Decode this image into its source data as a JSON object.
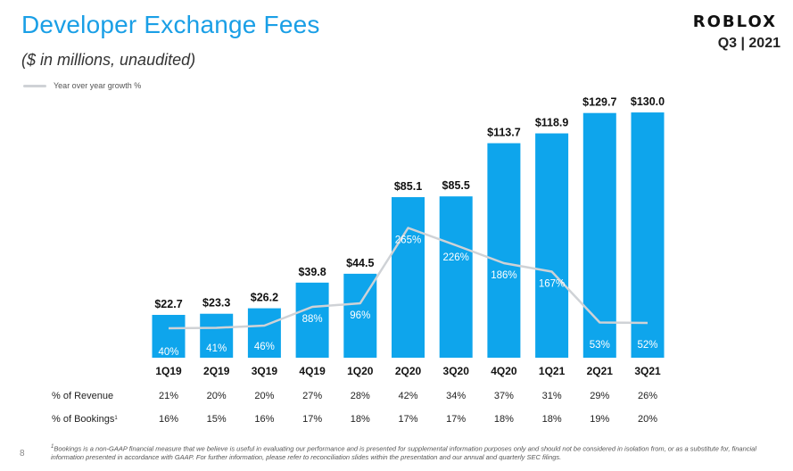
{
  "header": {
    "title": "Developer Exchange Fees",
    "subtitle": "($ in millions,  unaudited)",
    "logo_text": "ROBLOX",
    "period": "Q3 | 2021"
  },
  "legend": {
    "line_label": "Year over year growth %"
  },
  "colors": {
    "bar": "#0ea5ec",
    "line": "#cfd2d6",
    "title": "#1a9fe6"
  },
  "chart_data": {
    "type": "bar",
    "categories": [
      "1Q19",
      "2Q19",
      "3Q19",
      "4Q19",
      "1Q20",
      "2Q20",
      "3Q20",
      "4Q20",
      "1Q21",
      "2Q21",
      "3Q21"
    ],
    "values": [
      22.7,
      23.3,
      26.2,
      39.8,
      44.5,
      85.1,
      85.5,
      113.7,
      118.9,
      129.7,
      130.0
    ],
    "value_labels": [
      "$22.7",
      "$23.3",
      "$26.2",
      "$39.8",
      "$44.5",
      "$85.1",
      "$85.5",
      "$113.7",
      "$118.9",
      "$129.7",
      "$130.0"
    ],
    "growth_pct": [
      40,
      41,
      46,
      88,
      96,
      265,
      226,
      186,
      167,
      53,
      52
    ],
    "growth_labels": [
      "40%",
      "41%",
      "46%",
      "88%",
      "96%",
      "265%",
      "226%",
      "186%",
      "167%",
      "53%",
      "52%"
    ],
    "series": [
      {
        "name": "Year over year growth %",
        "values": [
          40,
          41,
          46,
          88,
          96,
          265,
          226,
          186,
          167,
          53,
          52
        ]
      }
    ],
    "legend_position": "top-left",
    "grid": false
  },
  "table": {
    "rows": [
      {
        "label": "% of Revenue",
        "values": [
          "21%",
          "20%",
          "20%",
          "27%",
          "28%",
          "42%",
          "34%",
          "37%",
          "31%",
          "29%",
          "26%"
        ]
      },
      {
        "label": "% of Bookings",
        "label_sup": "1",
        "values": [
          "16%",
          "15%",
          "16%",
          "17%",
          "18%",
          "17%",
          "17%",
          "18%",
          "18%",
          "19%",
          "20%"
        ]
      }
    ]
  },
  "footer": {
    "page_number": "8",
    "footnote_sup": "1",
    "footnote": "Bookings is a non-GAAP financial measure that we believe is useful in evaluating our performance and is presented for supplemental information purposes only and should not be considered in isolation from, or as a substitute for, financial information presented in accordance with GAAP. For further information, please refer to reconciliation slides within the presentation and our annual and quarterly SEC filings."
  }
}
